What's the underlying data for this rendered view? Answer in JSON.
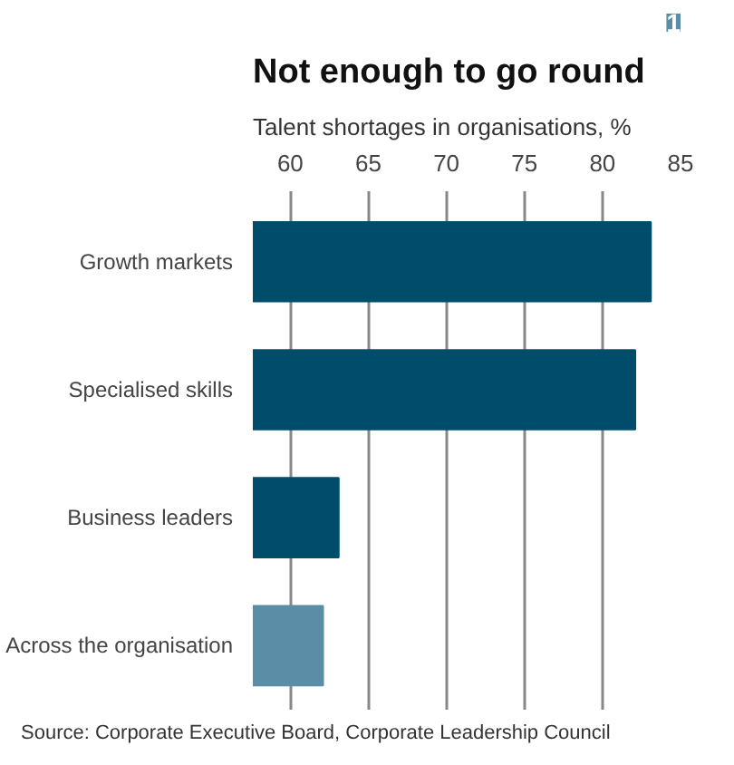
{
  "chart_data": {
    "type": "bar",
    "orientation": "horizontal",
    "title": "Not enough to go round",
    "subtitle": "Talent shortages in organisations, %",
    "categories": [
      "Growth markets",
      "Specialised skills",
      "Business leaders",
      "Across the organisation"
    ],
    "values": [
      83.1,
      82.1,
      63.1,
      62.1
    ],
    "colors": [
      "#004d6b",
      "#004d6b",
      "#004d6b",
      "#5b8ea6"
    ],
    "xlim": [
      57.6,
      85
    ],
    "xticks": [
      60,
      65,
      70,
      75,
      80,
      85
    ],
    "grid": "x",
    "annotations": [
      "1",
      "Source: Corporate Executive Board, Corporate Leadership Council"
    ]
  }
}
